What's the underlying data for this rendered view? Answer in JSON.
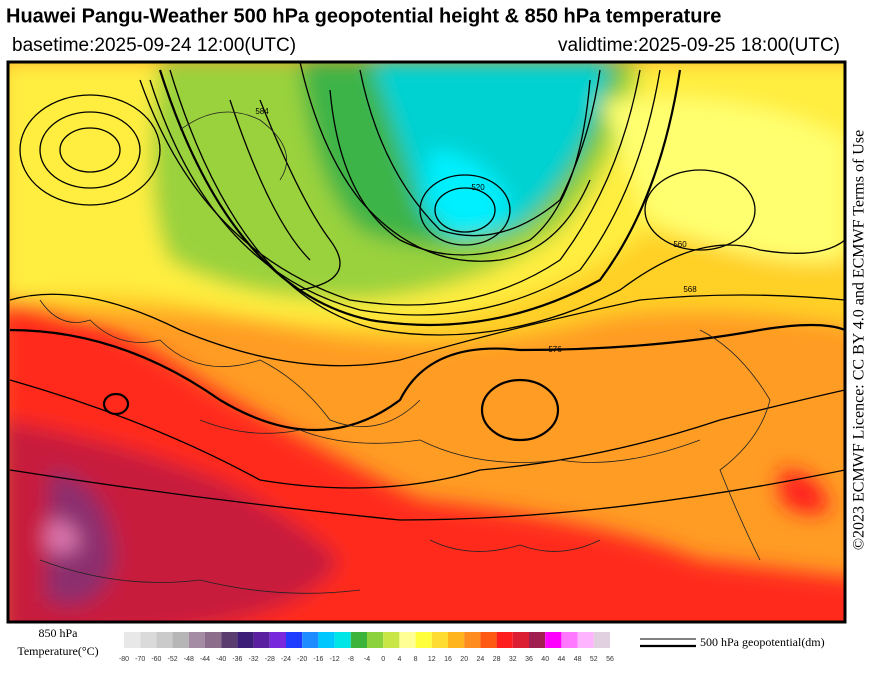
{
  "header": {
    "title": "Huawei Pangu-Weather 500 hPa geopotential height & 850 hPa temperature",
    "basetime": "basetime:2025-09-24 12:00(UTC)",
    "validtime": "validtime:2025-09-25 18:00(UTC)"
  },
  "licence": "©2023 ECMWF Licence: CC BY 4.0 and ECMWF Terms of Use",
  "map": {
    "contour_labels": [
      "520",
      "568",
      "576",
      "584",
      "560"
    ]
  },
  "legend": {
    "title_line1": "850 hPa",
    "title_line2": "Temperature(°C)",
    "colorbar": {
      "labels": [
        -80,
        -70,
        -60,
        -52,
        -48,
        -44,
        -40,
        -36,
        -32,
        -28,
        -24,
        -20,
        -16,
        -12,
        -8,
        -4,
        0,
        4,
        8,
        12,
        16,
        20,
        24,
        28,
        32,
        36,
        40,
        44,
        48,
        52,
        56
      ],
      "colors": [
        "#e8e8e8",
        "#dadada",
        "#cacaca",
        "#b6b6b6",
        "#a48ca4",
        "#8c6e8c",
        "#5a3c6e",
        "#3c1e78",
        "#5a1ea0",
        "#7828dc",
        "#1e3cff",
        "#1e8cff",
        "#00c8ff",
        "#00e6e6",
        "#3cb43c",
        "#8cd23c",
        "#c8e646",
        "#ffff96",
        "#ffff3c",
        "#ffdc32",
        "#ffb41e",
        "#ff8c1e",
        "#ff5a14",
        "#ff1e1e",
        "#dc1e32",
        "#a01e50",
        "#ff00ff",
        "#ff78ff",
        "#ffb4ff",
        "#e0d0e0"
      ]
    },
    "line_label": "500 hPa geopotential(dm)"
  }
}
